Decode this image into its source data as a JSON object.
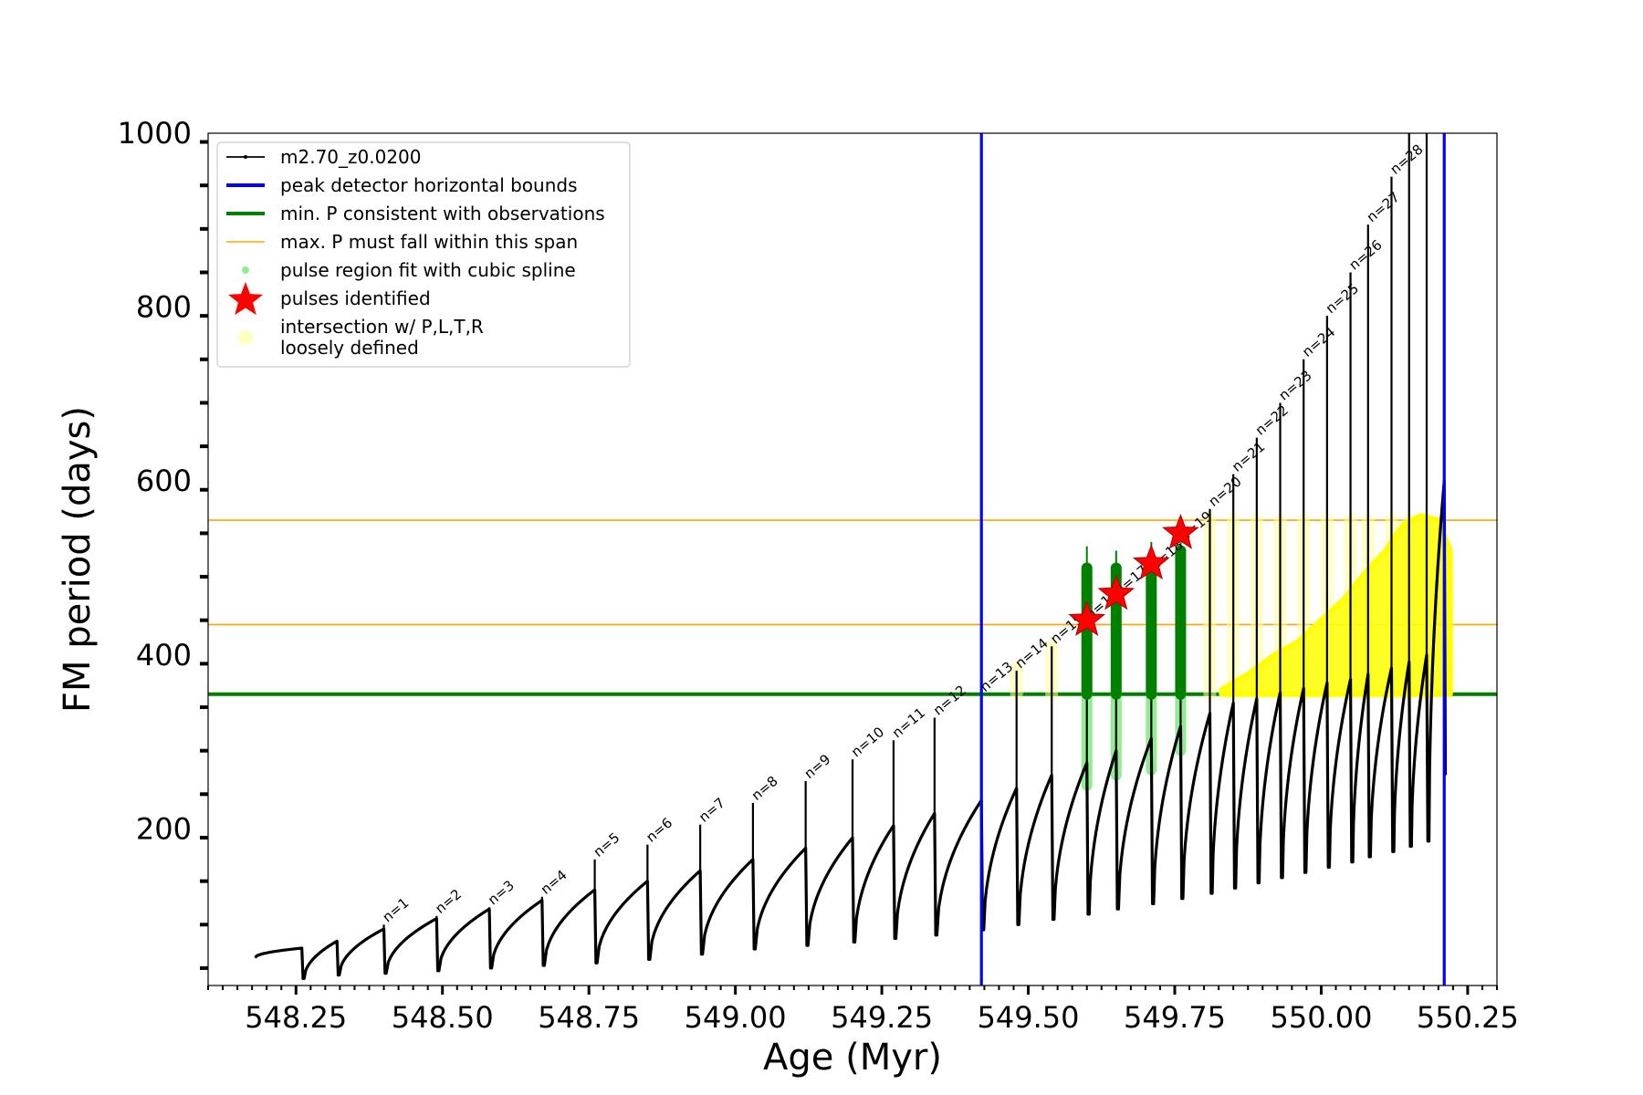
{
  "chart_data": {
    "type": "line",
    "xlabel": "Age (Myr)",
    "ylabel": "FM period (days)",
    "xlim": [
      548.1,
      550.3
    ],
    "ylim": [
      20,
      1000
    ],
    "x_ticks": [
      548.25,
      548.5,
      548.75,
      549.0,
      549.25,
      549.5,
      549.75,
      550.0,
      550.25
    ],
    "x_tick_labels": [
      "548.25",
      "548.50",
      "548.75",
      "549.00",
      "549.25",
      "549.50",
      "549.75",
      "550.00",
      "550.25"
    ],
    "y_ticks": [
      200,
      400,
      600,
      800,
      1000
    ],
    "y_tick_labels": [
      "200",
      "400",
      "600",
      "800",
      "1000"
    ],
    "grid": false,
    "legend_position": "top-left",
    "legend": [
      {
        "label": "m2.70_z0.0200",
        "kind": "line-marker",
        "color": "#000000"
      },
      {
        "label": "peak detector horizontal bounds",
        "kind": "line",
        "color": "#0000ff"
      },
      {
        "label": "min. P consistent with observations",
        "kind": "line",
        "color": "#008000"
      },
      {
        "label": "max. P must fall within this span",
        "kind": "thin-line",
        "color": "#ffa500"
      },
      {
        "label": "pulse region fit with cubic spline",
        "kind": "dot",
        "color": "#90ee90"
      },
      {
        "label": "pulses identified",
        "kind": "star",
        "color": "#ff0000"
      },
      {
        "label": "intersection w/ P,L,T,R",
        "label2": "loosely defined",
        "kind": "big-dot",
        "color": "#ffffc0"
      }
    ],
    "vertical_lines": [
      {
        "x": 549.42,
        "color": "#0000ff",
        "series": "peak detector horizontal bounds"
      },
      {
        "x": 550.21,
        "color": "#0000ff",
        "series": "peak detector horizontal bounds"
      }
    ],
    "horizontal_lines": [
      {
        "y": 355,
        "color": "#008000",
        "series": "min. P consistent with observations"
      },
      {
        "y": 435,
        "color": "#ffa500",
        "series": "max. P must fall within this span"
      },
      {
        "y": 555,
        "color": "#ffa500",
        "series": "max. P must fall within this span"
      }
    ],
    "pulses": [
      {
        "n": "",
        "x": 548.26,
        "peak": 63,
        "trough": 28,
        "start_value": 52
      },
      {
        "n": "",
        "x": 548.32,
        "peak": 71,
        "trough": 32
      },
      {
        "n": "n=1",
        "x": 548.4,
        "peak": 85,
        "trough": 34
      },
      {
        "n": "n=2",
        "x": 548.49,
        "peak": 97,
        "trough": 37
      },
      {
        "n": "n=3",
        "x": 548.58,
        "peak": 108,
        "trough": 40
      },
      {
        "n": "n=4",
        "x": 548.67,
        "peak": 118,
        "trough": 43
      },
      {
        "n": "n=5",
        "x": 548.76,
        "peak": 130,
        "trough": 46
      },
      {
        "n": "n=6",
        "x": 548.85,
        "peak": 140,
        "trough": 50
      },
      {
        "n": "n=7",
        "x": 548.94,
        "peak": 152,
        "trough": 56
      },
      {
        "n": "n=8",
        "x": 549.03,
        "peak": 165,
        "trough": 62
      },
      {
        "n": "n=9",
        "x": 549.12,
        "peak": 178,
        "trough": 66
      },
      {
        "n": "n=10",
        "x": 549.2,
        "peak": 190,
        "trough": 70
      },
      {
        "n": "n=11",
        "x": 549.27,
        "peak": 204,
        "trough": 74
      },
      {
        "n": "n=12",
        "x": 549.34,
        "peak": 218,
        "trough": 78
      },
      {
        "n": "n=13",
        "x": 549.42,
        "peak": 233,
        "trough": 84
      },
      {
        "n": "n=14",
        "x": 549.48,
        "peak": 247,
        "trough": 90
      },
      {
        "n": "n=15",
        "x": 549.54,
        "peak": 262,
        "trough": 96
      },
      {
        "n": "n=16",
        "x": 549.6,
        "peak": 276,
        "trough": 102
      },
      {
        "n": "n=17",
        "x": 549.65,
        "peak": 290,
        "trough": 108
      },
      {
        "n": "n=18",
        "x": 549.71,
        "peak": 304,
        "trough": 114
      },
      {
        "n": "n=19",
        "x": 549.76,
        "peak": 318,
        "trough": 120
      },
      {
        "n": "n=20",
        "x": 549.81,
        "peak": 333,
        "trough": 126
      },
      {
        "n": "n=21",
        "x": 549.85,
        "peak": 345,
        "trough": 132
      },
      {
        "n": "n=22",
        "x": 549.89,
        "peak": 350,
        "trough": 138
      },
      {
        "n": "n=23",
        "x": 549.93,
        "peak": 357,
        "trough": 144
      },
      {
        "n": "n=24",
        "x": 549.97,
        "peak": 362,
        "trough": 150
      },
      {
        "n": "n=25",
        "x": 550.01,
        "peak": 368,
        "trough": 156
      },
      {
        "n": "n=26",
        "x": 550.05,
        "peak": 372,
        "trough": 162
      },
      {
        "n": "n=27",
        "x": 550.08,
        "peak": 378,
        "trough": 168
      },
      {
        "n": "n=28",
        "x": 550.12,
        "peak": 385,
        "trough": 174
      },
      {
        "n": "",
        "x": 550.15,
        "peak": 392,
        "trough": 180
      },
      {
        "n": "",
        "x": 550.18,
        "peak": 400,
        "trough": 186
      },
      {
        "n": "",
        "x": 550.21,
        "peak": 600,
        "trough": 262
      }
    ],
    "spikes": [
      {
        "x": 548.4,
        "top": 90
      },
      {
        "x": 548.49,
        "top": 100
      },
      {
        "x": 548.58,
        "top": 110
      },
      {
        "x": 548.67,
        "top": 122
      },
      {
        "x": 548.76,
        "top": 165
      },
      {
        "x": 548.85,
        "top": 182
      },
      {
        "x": 548.94,
        "top": 205
      },
      {
        "x": 549.03,
        "top": 230
      },
      {
        "x": 549.12,
        "top": 255
      },
      {
        "x": 549.2,
        "top": 280
      },
      {
        "x": 549.27,
        "top": 302
      },
      {
        "x": 549.34,
        "top": 328
      },
      {
        "x": 549.42,
        "top": 355
      },
      {
        "x": 549.48,
        "top": 382
      },
      {
        "x": 549.54,
        "top": 410
      },
      {
        "x": 549.6,
        "top": 438
      },
      {
        "x": 549.65,
        "top": 466
      },
      {
        "x": 549.71,
        "top": 495
      },
      {
        "x": 549.76,
        "top": 528
      },
      {
        "x": 549.81,
        "top": 568
      },
      {
        "x": 549.85,
        "top": 608
      },
      {
        "x": 549.89,
        "top": 650
      },
      {
        "x": 549.93,
        "top": 690
      },
      {
        "x": 549.97,
        "top": 740
      },
      {
        "x": 550.01,
        "top": 790
      },
      {
        "x": 550.05,
        "top": 840
      },
      {
        "x": 550.08,
        "top": 895
      },
      {
        "x": 550.12,
        "top": 950
      },
      {
        "x": 550.15,
        "top": 1000
      },
      {
        "x": 550.18,
        "top": 1000
      }
    ],
    "pulses_identified": [
      {
        "x": 549.6,
        "y": 440
      },
      {
        "x": 549.65,
        "y": 470
      },
      {
        "x": 549.71,
        "y": 505
      },
      {
        "x": 549.76,
        "y": 540
      }
    ],
    "green_pulse_segments": [
      {
        "x": 549.6,
        "lo": 355,
        "hi": 500,
        "thin_hi": 525
      },
      {
        "x": 549.65,
        "lo": 355,
        "hi": 500,
        "thin_hi": 520
      },
      {
        "x": 549.71,
        "lo": 355,
        "hi": 510,
        "thin_hi": 530
      },
      {
        "x": 549.76,
        "lo": 355,
        "hi": 520,
        "thin_hi": 530
      }
    ],
    "spline_segments": [
      {
        "x": 549.6,
        "lo": 250,
        "hi": 355
      },
      {
        "x": 549.65,
        "lo": 262,
        "hi": 355
      },
      {
        "x": 549.71,
        "lo": 268,
        "hi": 355
      },
      {
        "x": 549.76,
        "lo": 290,
        "hi": 355
      }
    ],
    "loose_columns": [
      {
        "x": 549.48,
        "lo": 355,
        "hi": 385
      },
      {
        "x": 549.54,
        "lo": 355,
        "hi": 410
      },
      {
        "x": 549.81,
        "lo": 355,
        "hi": 555
      },
      {
        "x": 549.85,
        "lo": 355,
        "hi": 555
      },
      {
        "x": 549.89,
        "lo": 355,
        "hi": 555
      },
      {
        "x": 549.93,
        "lo": 355,
        "hi": 555
      },
      {
        "x": 549.97,
        "lo": 355,
        "hi": 555
      },
      {
        "x": 550.01,
        "lo": 355,
        "hi": 555
      },
      {
        "x": 550.05,
        "lo": 355,
        "hi": 555
      },
      {
        "x": 550.08,
        "lo": 355,
        "hi": 555
      },
      {
        "x": 550.12,
        "lo": 355,
        "hi": 555
      },
      {
        "x": 550.15,
        "lo": 355,
        "hi": 555
      },
      {
        "x": 550.18,
        "lo": 355,
        "hi": 555
      }
    ],
    "yellow_band": [
      {
        "x": 549.83,
        "y": 360
      },
      {
        "x": 549.88,
        "y": 380
      },
      {
        "x": 549.92,
        "y": 400
      },
      {
        "x": 549.96,
        "y": 415
      },
      {
        "x": 550.0,
        "y": 440
      },
      {
        "x": 550.04,
        "y": 465
      },
      {
        "x": 550.07,
        "y": 490
      },
      {
        "x": 550.11,
        "y": 520
      },
      {
        "x": 550.14,
        "y": 550
      },
      {
        "x": 550.17,
        "y": 560
      },
      {
        "x": 550.2,
        "y": 555
      },
      {
        "x": 550.22,
        "y": 520
      }
    ]
  }
}
